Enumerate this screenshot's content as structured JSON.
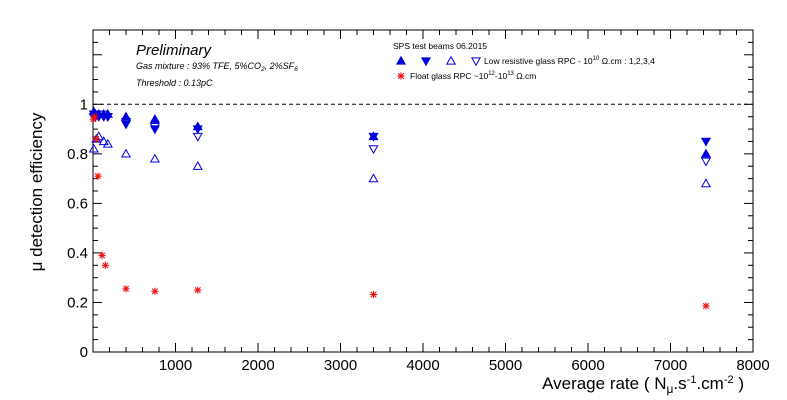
{
  "chart_data": {
    "type": "scatter",
    "title": "",
    "xlabel": "Average rate ( N",
    "xlabel_sub": "μ",
    "xlabel_mid": ".s",
    "xlabel_sup1": "-1",
    "xlabel_mid2": ".cm",
    "xlabel_sup2": "-2",
    "xlabel_end": " )",
    "ylabel": "μ detection efficiency",
    "xlim": [
      0,
      8000
    ],
    "ylim": [
      0,
      1.3
    ],
    "x_ticks": [
      1000,
      2000,
      3000,
      4000,
      5000,
      6000,
      7000,
      8000
    ],
    "x_tick_labels": [
      "1000",
      "2000",
      "3000",
      "4000",
      "5000",
      "6000",
      "7000",
      "8000"
    ],
    "y_ticks": [
      0,
      0.2,
      0.4,
      0.6,
      0.8,
      1
    ],
    "y_tick_labels": [
      "0",
      "0.2",
      "0.4",
      "0.6",
      "0.8",
      "1"
    ],
    "reference_line": {
      "y": 1,
      "style": "dashed"
    },
    "annotations": {
      "preliminary": "Preliminary",
      "gas_prefix": "Gas mixture : 93% TFE, 5%CO",
      "gas_sub1": "2",
      "gas_mid": ", 2%SF",
      "gas_sub2": "6",
      "threshold": "Threshold : 0.13pC"
    },
    "legend": {
      "header": "SPS test beams 06.2015",
      "entry1_a": "Low resistive glass RPC - 10",
      "entry1_sup": "10",
      "entry1_b": " Ω.cm : 1,2,3,4",
      "entry2_a": "Float glass RPC ~10",
      "entry2_sup1": "12",
      "entry2_mid": "-10",
      "entry2_sup2": "13",
      "entry2_b": " Ω.cm"
    },
    "colors": {
      "blue": "#0000dd",
      "red": "#ee1111",
      "axis": "#000000"
    },
    "series": [
      {
        "name": "Low resistive glass RPC 1",
        "marker": "triangle-up-filled",
        "color": "#0000dd",
        "points": [
          [
            10,
            0.97
          ],
          [
            30,
            0.96
          ],
          [
            70,
            0.96
          ],
          [
            130,
            0.96
          ],
          [
            180,
            0.96
          ],
          [
            400,
            0.95
          ],
          [
            750,
            0.94
          ],
          [
            1270,
            0.91
          ],
          [
            3400,
            0.87
          ],
          [
            7430,
            0.8
          ]
        ]
      },
      {
        "name": "Low resistive glass RPC 2",
        "marker": "triangle-down-filled",
        "color": "#0000dd",
        "points": [
          [
            10,
            0.96
          ],
          [
            30,
            0.96
          ],
          [
            70,
            0.95
          ],
          [
            130,
            0.95
          ],
          [
            180,
            0.95
          ],
          [
            400,
            0.92
          ],
          [
            750,
            0.9
          ],
          [
            1270,
            0.9
          ],
          [
            3400,
            0.87
          ],
          [
            7430,
            0.85
          ]
        ]
      },
      {
        "name": "Low resistive glass RPC 3",
        "marker": "triangle-up-open",
        "color": "#0000dd",
        "points": [
          [
            10,
            0.82
          ],
          [
            40,
            0.86
          ],
          [
            70,
            0.87
          ],
          [
            130,
            0.85
          ],
          [
            180,
            0.84
          ],
          [
            400,
            0.8
          ],
          [
            750,
            0.78
          ],
          [
            1270,
            0.75
          ],
          [
            3400,
            0.7
          ],
          [
            7430,
            0.68
          ]
        ]
      },
      {
        "name": "Low resistive glass RPC 4",
        "marker": "triangle-down-open",
        "color": "#0000dd",
        "points": [
          [
            10,
            0.95
          ],
          [
            30,
            0.95
          ],
          [
            70,
            0.96
          ],
          [
            130,
            0.96
          ],
          [
            180,
            0.95
          ],
          [
            400,
            0.93
          ],
          [
            750,
            0.91
          ],
          [
            1270,
            0.87
          ],
          [
            3400,
            0.82
          ],
          [
            7430,
            0.77
          ]
        ]
      },
      {
        "name": "Float glass RPC",
        "marker": "star",
        "color": "#ee1111",
        "points": [
          [
            5,
            0.94
          ],
          [
            20,
            0.95
          ],
          [
            40,
            0.86
          ],
          [
            60,
            0.71
          ],
          [
            110,
            0.39
          ],
          [
            150,
            0.35
          ],
          [
            400,
            0.255
          ],
          [
            750,
            0.245
          ],
          [
            1270,
            0.25
          ],
          [
            3400,
            0.232
          ],
          [
            7430,
            0.186
          ]
        ]
      }
    ]
  }
}
